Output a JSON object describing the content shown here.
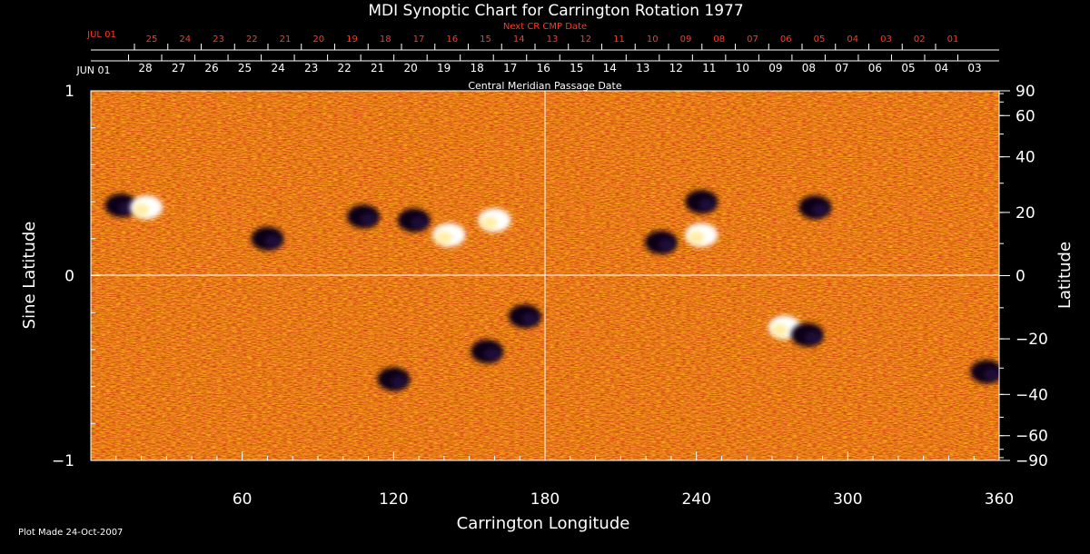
{
  "chart_data": {
    "type": "heatmap",
    "title": "MDI Synoptic Chart for Carrington Rotation 1977",
    "xlabel": "Carrington Longitude",
    "ylabel_left": "Sine Latitude",
    "ylabel_right": "Latitude",
    "xlim": [
      0,
      360
    ],
    "ylim": [
      -1,
      1
    ],
    "x_ticks": [
      "60",
      "120",
      "180",
      "240",
      "300",
      "360"
    ],
    "x_tick_values": [
      60,
      120,
      180,
      240,
      300,
      360
    ],
    "y_ticks_left": [
      "1",
      "0",
      "−1"
    ],
    "y_tick_values_left": [
      1,
      0,
      -1
    ],
    "y_ticks_right": [
      "90",
      "60",
      "40",
      "20",
      "0",
      "−20",
      "−40",
      "−60",
      "−90"
    ],
    "y_tick_values_right": [
      90,
      60,
      40,
      20,
      0,
      -20,
      -40,
      -60,
      -90
    ],
    "cmp_axis_label": "Central Meridian Passage Date",
    "cmp_month_label": "JUN 01",
    "cmp_dates": [
      "28",
      "27",
      "26",
      "25",
      "24",
      "23",
      "22",
      "21",
      "20",
      "19",
      "18",
      "17",
      "16",
      "15",
      "14",
      "13",
      "12",
      "11",
      "10",
      "09",
      "08",
      "07",
      "06",
      "05",
      "04",
      "03"
    ],
    "next_cr_label": "Next CR CMP Date",
    "next_cr_month_label": "JUL 01",
    "next_cr_dates": [
      "25",
      "24",
      "23",
      "22",
      "21",
      "20",
      "19",
      "18",
      "17",
      "16",
      "15",
      "14",
      "13",
      "12",
      "11",
      "10",
      "09",
      "08",
      "07",
      "06",
      "05",
      "04",
      "03",
      "02",
      "01"
    ],
    "active_regions": [
      {
        "lon": 12,
        "sinlat": 0.38,
        "polarity": "negative"
      },
      {
        "lon": 22,
        "sinlat": 0.37,
        "polarity": "positive"
      },
      {
        "lon": 108,
        "sinlat": 0.32,
        "polarity": "negative"
      },
      {
        "lon": 128,
        "sinlat": 0.3,
        "polarity": "negative"
      },
      {
        "lon": 142,
        "sinlat": 0.22,
        "polarity": "positive"
      },
      {
        "lon": 160,
        "sinlat": 0.3,
        "polarity": "positive"
      },
      {
        "lon": 226,
        "sinlat": 0.18,
        "polarity": "negative"
      },
      {
        "lon": 242,
        "sinlat": 0.22,
        "polarity": "positive"
      },
      {
        "lon": 242,
        "sinlat": 0.4,
        "polarity": "negative"
      },
      {
        "lon": 287,
        "sinlat": 0.37,
        "polarity": "negative"
      },
      {
        "lon": 275,
        "sinlat": -0.28,
        "polarity": "positive"
      },
      {
        "lon": 284,
        "sinlat": -0.32,
        "polarity": "negative"
      },
      {
        "lon": 172,
        "sinlat": -0.22,
        "polarity": "negative"
      },
      {
        "lon": 157,
        "sinlat": -0.41,
        "polarity": "negative"
      },
      {
        "lon": 120,
        "sinlat": -0.56,
        "polarity": "negative"
      },
      {
        "lon": 355,
        "sinlat": -0.52,
        "polarity": "negative"
      },
      {
        "lon": 70,
        "sinlat": 0.2,
        "polarity": "negative"
      }
    ],
    "colors": {
      "background": "#000000",
      "field_neutral": "#d94012",
      "field_positive": "#ffffff",
      "field_negative": "#0a0412",
      "axis": "#ffffff",
      "cmp_dates": "#ffffff",
      "next_cr_dates": "#ff3a1e"
    }
  },
  "footer": {
    "plot_made": "Plot Made 24-Oct-2007"
  }
}
